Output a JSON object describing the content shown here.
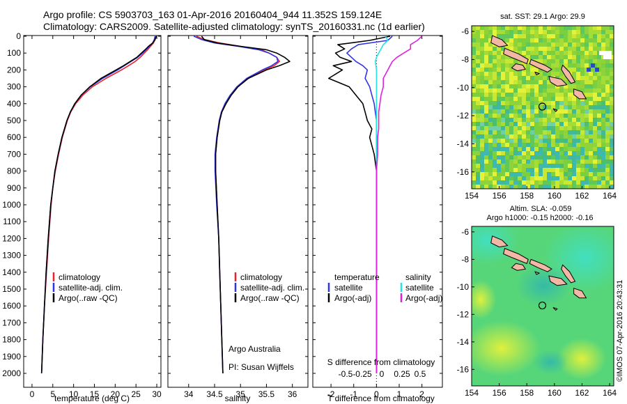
{
  "header": {
    "line1": "Argo profile: CS 5903703_163 01-Apr-2016 20160404_944 11.352S 159.124E",
    "line2": "Climatology: CARS2009. Satellite-adjusted climatology: synTS_20160331.nc (1d earlier)"
  },
  "credit": "©IMOS 07-Apr-2016 20:43:31",
  "colors": {
    "clim": "#e8232a",
    "sat": "#2f35e0",
    "argo": "#000000",
    "sat_s": "#22e5e5",
    "argo_s": "#e21ee0"
  },
  "chart_data": [
    {
      "type": "line",
      "xlabel": "temperature (deg C)",
      "ylabel": "",
      "xlim": [
        -2,
        31
      ],
      "ylim": [
        2050,
        0
      ],
      "xticks": [
        "0",
        "5",
        "10",
        "15",
        "20",
        "25",
        "30"
      ],
      "yticks": [
        "0",
        "100",
        "200",
        "300",
        "400",
        "500",
        "600",
        "700",
        "800",
        "900",
        "1000",
        "1100",
        "1200",
        "1300",
        "1400",
        "1500",
        "1600",
        "1700",
        "1800",
        "1900",
        "2000"
      ],
      "legend": [
        "climatology",
        "satellite-adj. clim.",
        "Argo(..raw -QC)"
      ],
      "depth": [
        0,
        20,
        40,
        60,
        80,
        100,
        125,
        150,
        175,
        200,
        250,
        300,
        350,
        400,
        450,
        500,
        600,
        700,
        800,
        900,
        1000,
        1200,
        1400,
        1600,
        1800,
        2000
      ],
      "series": [
        {
          "name": "climatology",
          "values": [
            29.8,
            29.6,
            29.2,
            28.5,
            27.8,
            27.0,
            26.0,
            24.8,
            23.2,
            21.5,
            17.8,
            14.5,
            12.2,
            10.5,
            9.3,
            8.5,
            7.3,
            6.4,
            5.6,
            5.0,
            4.6,
            4.0,
            3.5,
            3.0,
            2.6,
            2.3
          ]
        },
        {
          "name": "satellite-adj. clim.",
          "values": [
            29.6,
            29.4,
            29.0,
            28.3,
            27.4,
            26.6,
            25.4,
            23.8,
            22.2,
            20.6,
            17.0,
            14.0,
            11.8,
            10.3,
            9.2,
            8.4,
            7.2,
            6.3,
            5.5,
            5.0,
            4.5,
            3.9,
            3.4,
            3.0,
            2.6,
            2.3
          ]
        },
        {
          "name": "Argo(..raw -QC)",
          "values": [
            29.9,
            29.6,
            29.0,
            28.0,
            27.2,
            26.3,
            25.2,
            23.6,
            22.0,
            20.2,
            16.6,
            13.9,
            11.8,
            10.3,
            9.2,
            8.4,
            7.2,
            6.3,
            5.5,
            5.0,
            4.5,
            3.9,
            3.4,
            3.0,
            2.6,
            2.3
          ]
        }
      ]
    },
    {
      "type": "line",
      "xlabel": "salinity",
      "xlim": [
        33.6,
        36.3
      ],
      "ylim": [
        2050,
        0
      ],
      "xticks": [
        "34",
        "34.5",
        "35",
        "35.5",
        "36"
      ],
      "legend": [
        "climatology",
        "satellite-adj. clim.",
        "Argo(..raw -QC)"
      ],
      "annotation": [
        "Argo Australia",
        "PI: Susan Wijffels"
      ],
      "depth": [
        0,
        20,
        40,
        60,
        80,
        100,
        125,
        150,
        175,
        200,
        250,
        300,
        350,
        400,
        450,
        500,
        600,
        700,
        800,
        1000,
        1200,
        1400,
        1600,
        1800,
        2000
      ],
      "series": [
        {
          "name": "climatology",
          "values": [
            34.15,
            34.3,
            34.6,
            35.0,
            35.4,
            35.55,
            35.7,
            35.75,
            35.65,
            35.45,
            35.15,
            34.95,
            34.82,
            34.72,
            34.64,
            34.6,
            34.55,
            34.52,
            34.52,
            34.55,
            34.58,
            34.6,
            34.62,
            34.64,
            34.66
          ]
        },
        {
          "name": "satellite-adj. clim.",
          "values": [
            34.1,
            34.25,
            34.5,
            34.95,
            35.35,
            35.55,
            35.7,
            35.72,
            35.6,
            35.42,
            35.12,
            34.93,
            34.8,
            34.7,
            34.63,
            34.59,
            34.54,
            34.51,
            34.51,
            34.54,
            34.58,
            34.6,
            34.62,
            34.64,
            34.66
          ]
        },
        {
          "name": "Argo(..raw -QC)",
          "values": [
            34.25,
            34.3,
            34.55,
            35.0,
            35.5,
            35.7,
            35.85,
            35.95,
            35.75,
            35.5,
            35.15,
            34.95,
            34.82,
            34.72,
            34.64,
            34.6,
            34.55,
            34.52,
            34.52,
            34.55,
            34.58,
            34.6,
            34.62,
            34.64,
            34.66
          ]
        }
      ]
    },
    {
      "type": "line",
      "xlabel": "T difference from climatology",
      "xlabel2": "S difference from climatology",
      "xlim": [
        -2.8,
        2.9
      ],
      "ylim": [
        2050,
        0
      ],
      "xticks": [
        "-2",
        "-1",
        "0",
        "1",
        "2"
      ],
      "xticks_s": [
        "-0.5",
        "-0.25",
        "0",
        "0.25",
        "0.5"
      ],
      "legend": [
        "temperature",
        "satellite",
        "Argo(-adj)",
        "salinity",
        "satellite",
        "Argo(-adj)"
      ],
      "depth": [
        0,
        25,
        50,
        75,
        100,
        125,
        150,
        175,
        200,
        250,
        300,
        350,
        400,
        450,
        500,
        550,
        600,
        700,
        800,
        900,
        1000,
        1200,
        1400,
        1600,
        1800,
        2000
      ],
      "series": [
        {
          "name": "temperature satellite",
          "values": [
            0.7,
            0.5,
            -0.8,
            -1.1,
            -1.3,
            -1.1,
            -0.9,
            -0.6,
            -0.4,
            -0.5,
            -0.3,
            -0.2,
            -0.1,
            -0.05,
            0,
            0,
            0,
            0,
            0,
            0,
            0,
            0,
            0,
            0,
            0,
            0
          ]
        },
        {
          "name": "temperature Argo(-adj)",
          "values": [
            0.6,
            -0.3,
            -1.7,
            -1.4,
            -1.8,
            -1.6,
            -1.1,
            -1.9,
            -1.5,
            -2.1,
            -1.2,
            -0.9,
            -0.6,
            -0.5,
            -0.4,
            -0.2,
            -0.3,
            -0.1,
            0,
            0,
            0,
            0,
            0,
            0,
            0,
            0
          ]
        },
        {
          "name": "salinity satellite",
          "values": [
            0.4,
            0.5,
            0.3,
            0.2,
            0.1,
            0,
            -0.05,
            -0.02,
            0,
            0,
            0,
            0,
            0,
            0,
            0,
            0,
            0,
            0,
            0,
            0,
            0,
            0,
            0,
            0,
            0,
            0
          ]
        },
        {
          "name": "salinity Argo(-adj)",
          "values": [
            2.0,
            1.8,
            1.5,
            1.5,
            1.2,
            0.9,
            0.7,
            0.6,
            0.5,
            0.3,
            0.3,
            0.2,
            0.15,
            0.1,
            0.1,
            0.1,
            0.05,
            0.05,
            0,
            0,
            0,
            0,
            0,
            0,
            0,
            0
          ]
        }
      ]
    },
    {
      "type": "heatmap",
      "title": "sat. SST: 29.1 Argo: 29.9",
      "xticks": [
        "154",
        "156",
        "158",
        "160",
        "162",
        "164"
      ],
      "yticks": [
        "-6",
        "-8",
        "-10",
        "-12",
        "-14",
        "-16"
      ],
      "xlim": [
        154,
        164.3
      ],
      "ylim": [
        -17.2,
        -5.6
      ],
      "marker": {
        "lon": 159.124,
        "lat": -11.352
      }
    },
    {
      "type": "heatmap",
      "title": "Altim. SLA: -0.059",
      "subtitle": "Argo h1000: -0.15 h2000: -0.16",
      "xticks": [
        "154",
        "156",
        "158",
        "160",
        "162",
        "164"
      ],
      "yticks": [
        "-6",
        "-8",
        "-10",
        "-12",
        "-14",
        "-16"
      ],
      "xlim": [
        154,
        164.3
      ],
      "ylim": [
        -17.2,
        -5.6
      ],
      "marker": {
        "lon": 159.124,
        "lat": -11.352
      }
    }
  ]
}
